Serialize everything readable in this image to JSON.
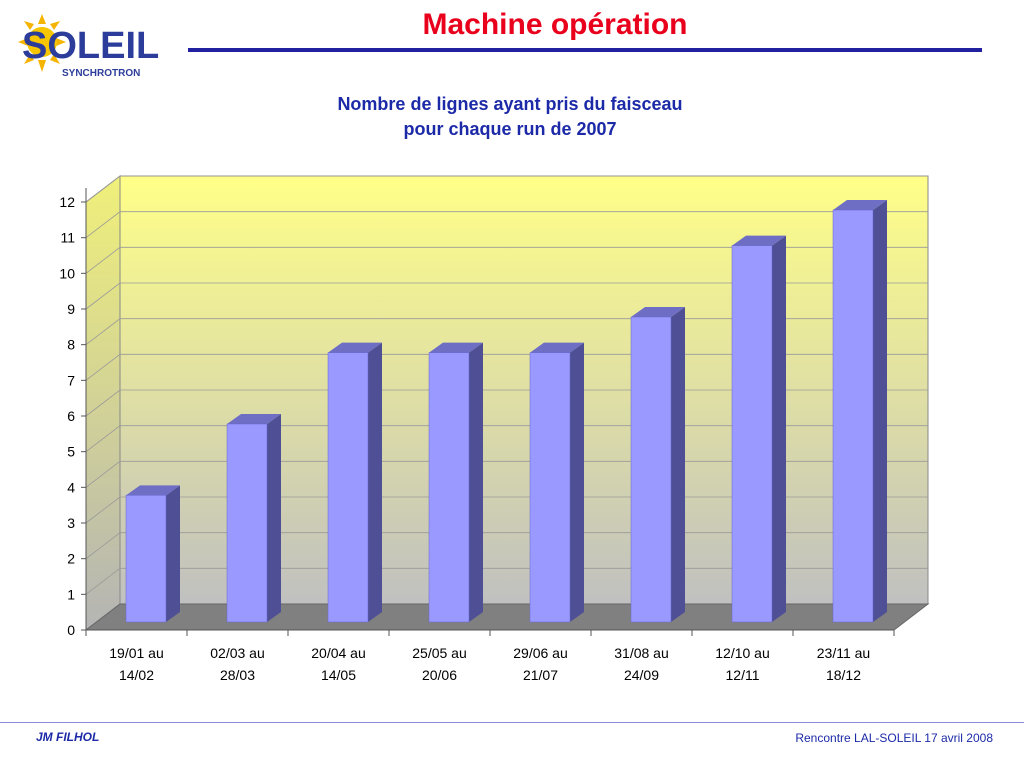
{
  "slide": {
    "title": "Machine opération",
    "footer_left": "JM FILHOL",
    "footer_right": "Rencontre LAL-SOLEIL 17 avril 2008"
  },
  "logo": {
    "name": "SOLEIL",
    "subtitle": "SYNCHROTRON"
  },
  "colors": {
    "title": "#e8001c",
    "accent_blue": "#1c2aa8",
    "bar_front": "#9999ff",
    "bar_side": "#4f4f96",
    "bar_top": "#6e6ec4",
    "floor": "#808080"
  },
  "chart_data": {
    "type": "bar",
    "title_line1": "Nombre de lignes ayant pris du faisceau",
    "title_line2": "pour chaque run de  2007",
    "categories": [
      [
        "19/01 au",
        "14/02"
      ],
      [
        "02/03 au",
        "28/03"
      ],
      [
        "20/04 au",
        "14/05"
      ],
      [
        "25/05 au",
        "20/06"
      ],
      [
        "29/06 au",
        "21/07"
      ],
      [
        "31/08 au",
        "24/09"
      ],
      [
        "12/10 au",
        "12/11"
      ],
      [
        "23/11 au",
        "18/12"
      ]
    ],
    "values": [
      4,
      6,
      8,
      8,
      8,
      9,
      11,
      12
    ],
    "ylim": [
      0,
      12
    ],
    "yticks": [
      0,
      1,
      2,
      3,
      4,
      5,
      6,
      7,
      8,
      9,
      10,
      11,
      12
    ],
    "grid": true,
    "legend": "none"
  }
}
